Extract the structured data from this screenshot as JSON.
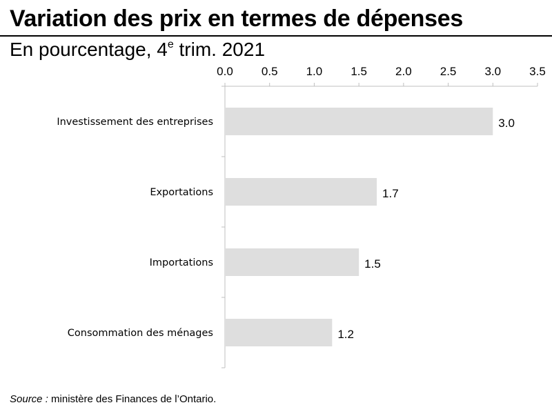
{
  "header": {
    "title": "Variation des prix en termes de dépenses",
    "subtitle_prefix": "En pourcentage, 4",
    "subtitle_sup": "e",
    "subtitle_suffix": " trim. 2021"
  },
  "footer": {
    "source_label": "Source :",
    "source_text": " ministère des Finances de l’Ontario."
  },
  "colors": {
    "bar": "#dedede",
    "axis": "#bfbfbf"
  },
  "chart_data": {
    "type": "bar",
    "orientation": "horizontal",
    "title": "Variation des prix en termes de dépenses",
    "subtitle": "En pourcentage, 4e trim. 2021",
    "categories": [
      "Investissement des entreprises",
      "Exportations",
      "Importations",
      "Consommation des ménages"
    ],
    "values": [
      3.0,
      1.7,
      1.5,
      1.2
    ],
    "value_labels": [
      "3.0",
      "1.7",
      "1.5",
      "1.2"
    ],
    "xlim": [
      0,
      3.5
    ],
    "xticks": [
      "0.0",
      "0.5",
      "1.0",
      "1.5",
      "2.0",
      "2.5",
      "3.0",
      "3.5"
    ],
    "xaxis_position": "top",
    "grid": false,
    "legend": "none"
  }
}
